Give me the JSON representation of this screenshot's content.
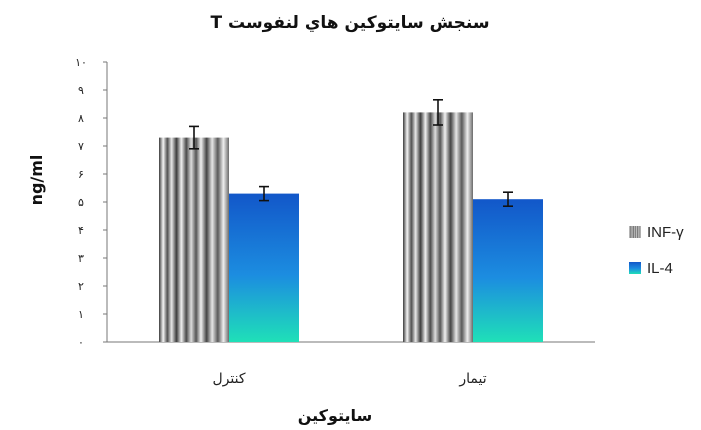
{
  "chart_data": {
    "type": "bar",
    "title": "سنجش سايتوكين هاي  لنفوست T",
    "xlabel": "سايتوكين",
    "ylabel": "ng/ml",
    "ylim": [
      0,
      10
    ],
    "yticks": [
      "۰",
      "۱",
      "۲",
      "۳",
      "۴",
      "۵",
      "۶",
      "۷",
      "۸",
      "۹",
      "۱۰"
    ],
    "categories": [
      "کنترل",
      "تیمار"
    ],
    "series": [
      {
        "name": "INF-γ",
        "values": [
          7.3,
          8.2
        ],
        "errors": [
          0.4,
          0.45
        ],
        "color": "#808080"
      },
      {
        "name": "IL-4",
        "values": [
          5.3,
          5.1
        ],
        "errors": [
          0.25,
          0.25
        ],
        "color": "#1a6fd4"
      }
    ],
    "legend": "right",
    "grid": false
  }
}
